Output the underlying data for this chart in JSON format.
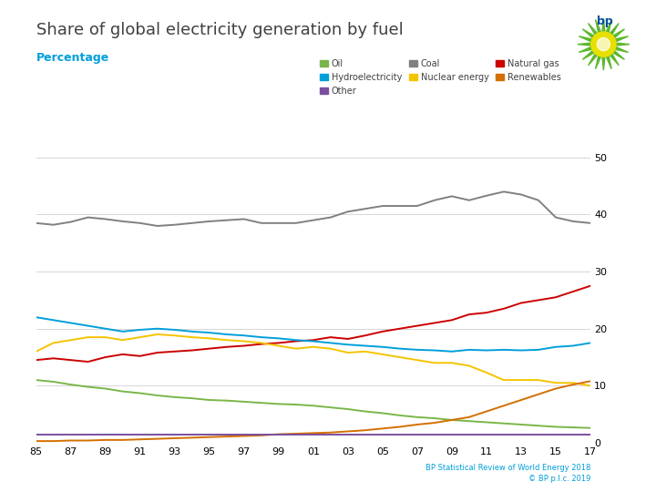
{
  "title": "Share of global electricity generation by fuel",
  "subtitle": "Percentage",
  "footer": "BP Statistical Review of World Energy 2018\n© BP p.l.c. 2019",
  "years": [
    1985,
    1986,
    1987,
    1988,
    1989,
    1990,
    1991,
    1992,
    1993,
    1994,
    1995,
    1996,
    1997,
    1998,
    1999,
    2000,
    2001,
    2002,
    2003,
    2004,
    2005,
    2006,
    2007,
    2008,
    2009,
    2010,
    2011,
    2012,
    2013,
    2014,
    2015,
    2016,
    2017
  ],
  "oil": [
    11.0,
    10.7,
    10.2,
    9.8,
    9.5,
    9.0,
    8.7,
    8.3,
    8.0,
    7.8,
    7.5,
    7.4,
    7.2,
    7.0,
    6.8,
    6.7,
    6.5,
    6.2,
    5.9,
    5.5,
    5.2,
    4.8,
    4.5,
    4.3,
    4.0,
    3.8,
    3.6,
    3.4,
    3.2,
    3.0,
    2.8,
    2.7,
    2.6
  ],
  "coal": [
    38.5,
    38.2,
    38.7,
    39.5,
    39.2,
    38.8,
    38.5,
    38.0,
    38.2,
    38.5,
    38.8,
    39.0,
    39.2,
    38.5,
    38.5,
    38.5,
    39.0,
    39.5,
    40.5,
    41.0,
    41.5,
    41.5,
    41.5,
    42.5,
    43.2,
    42.5,
    43.3,
    44.0,
    43.5,
    42.5,
    39.5,
    38.8,
    38.5
  ],
  "natural_gas": [
    14.5,
    14.8,
    14.5,
    14.2,
    15.0,
    15.5,
    15.2,
    15.8,
    16.0,
    16.2,
    16.5,
    16.8,
    17.0,
    17.3,
    17.5,
    17.8,
    18.0,
    18.5,
    18.2,
    18.8,
    19.5,
    20.0,
    20.5,
    21.0,
    21.5,
    22.5,
    22.8,
    23.5,
    24.5,
    25.0,
    25.5,
    26.5,
    27.5
  ],
  "hydro": [
    22.0,
    21.5,
    21.0,
    20.5,
    20.0,
    19.5,
    19.8,
    20.0,
    19.8,
    19.5,
    19.3,
    19.0,
    18.8,
    18.5,
    18.3,
    18.0,
    17.8,
    17.5,
    17.2,
    17.0,
    16.8,
    16.5,
    16.3,
    16.2,
    16.0,
    16.3,
    16.2,
    16.3,
    16.2,
    16.3,
    16.8,
    17.0,
    17.5
  ],
  "nuclear": [
    16.0,
    17.5,
    18.0,
    18.5,
    18.5,
    18.0,
    18.5,
    19.0,
    18.8,
    18.5,
    18.3,
    18.0,
    17.8,
    17.5,
    17.0,
    16.5,
    16.8,
    16.5,
    15.8,
    16.0,
    15.5,
    15.0,
    14.5,
    14.0,
    14.0,
    13.5,
    12.3,
    11.0,
    11.0,
    11.0,
    10.5,
    10.5,
    10.0
  ],
  "renewables": [
    0.3,
    0.3,
    0.4,
    0.4,
    0.5,
    0.5,
    0.6,
    0.7,
    0.8,
    0.9,
    1.0,
    1.1,
    1.2,
    1.3,
    1.5,
    1.6,
    1.7,
    1.8,
    2.0,
    2.2,
    2.5,
    2.8,
    3.2,
    3.5,
    4.0,
    4.5,
    5.5,
    6.5,
    7.5,
    8.5,
    9.5,
    10.2,
    10.8
  ],
  "other": [
    1.5,
    1.5,
    1.5,
    1.5,
    1.5,
    1.5,
    1.5,
    1.5,
    1.5,
    1.5,
    1.5,
    1.5,
    1.5,
    1.5,
    1.5,
    1.5,
    1.5,
    1.5,
    1.5,
    1.5,
    1.5,
    1.5,
    1.5,
    1.5,
    1.5,
    1.5,
    1.5,
    1.5,
    1.5,
    1.5,
    1.5,
    1.5,
    1.5
  ],
  "colors": {
    "oil": "#7ab648",
    "coal": "#808080",
    "natural_gas": "#cc0000",
    "hydro": "#009fda",
    "nuclear": "#f5c400",
    "renewables": "#d46f00",
    "other": "#7b4fa0"
  },
  "ylim": [
    0,
    50
  ],
  "yticks": [
    0,
    10,
    20,
    30,
    40,
    50
  ],
  "title_color": "#009fda",
  "subtitle_color": "#009fda",
  "background_color": "#ffffff",
  "grid_color": "#d0d0d0",
  "legend_items": [
    [
      "Oil",
      "oil"
    ],
    [
      "Hydroelectricity",
      "hydro"
    ],
    [
      "Other",
      "other"
    ],
    [
      "Coal",
      "coal"
    ],
    [
      "Nuclear energy",
      "nuclear"
    ],
    [
      "Natural gas",
      "natural_gas"
    ],
    [
      "Renewables",
      "renewables"
    ]
  ]
}
